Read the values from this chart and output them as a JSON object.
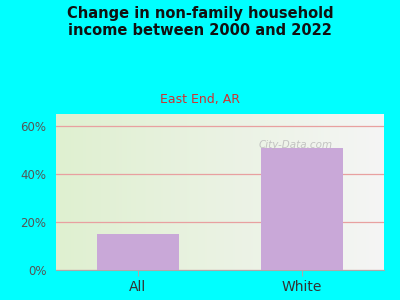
{
  "title": "Change in non-family household\nincome between 2000 and 2022",
  "subtitle": "East End, AR",
  "categories": [
    "All",
    "White"
  ],
  "values": [
    15,
    51
  ],
  "bar_color": "#c9a8d8",
  "title_color": "#111111",
  "subtitle_color": "#cc3333",
  "figure_bg": "#00ffff",
  "plot_bg_left": "#dff0d0",
  "plot_bg_right": "#f5f5f5",
  "ylim": [
    0,
    65
  ],
  "yticks": [
    0,
    20,
    40,
    60
  ],
  "ytick_labels": [
    "0%",
    "20%",
    "40%",
    "60%"
  ],
  "grid_color": "#e8a0a0",
  "watermark": "City-Data.com",
  "bar_width": 0.5
}
